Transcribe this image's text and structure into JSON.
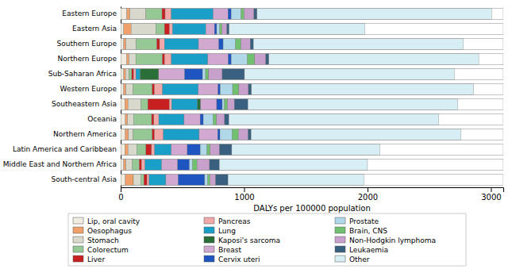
{
  "chart_data": {
    "type": "bar",
    "orientation": "horizontal",
    "stacked": true,
    "legend": "bottom",
    "grid": false,
    "xlabel": "DALYs per 100000 population",
    "xlim": [
      0,
      3100
    ],
    "xticks": [
      0,
      1000,
      2000,
      3000
    ],
    "categories": [
      "Eastern Europe",
      "Eastern Asia",
      "Southern Europe",
      "Northern Europe",
      "Sub-Saharan Africa",
      "Western Europe",
      "Southeastern Asia",
      "Oceania",
      "Northern America",
      "Latin America and Caribbean",
      "Middle East and Northern Africa",
      "South-central Asia"
    ],
    "series": [
      {
        "name": "Lip, oral cavity",
        "color": "#f0ede0",
        "values": [
          50,
          25,
          25,
          50,
          25,
          25,
          35,
          38,
          38,
          35,
          25,
          38
        ]
      },
      {
        "name": "Oesophagus",
        "color": "#f0a06a",
        "values": [
          25,
          60,
          18,
          18,
          15,
          18,
          25,
          18,
          25,
          25,
          18,
          65
        ]
      },
      {
        "name": "Stomach",
        "color": "#d8d8cc",
        "values": [
          130,
          200,
          80,
          55,
          25,
          58,
          105,
          50,
          38,
          70,
          50,
          60
        ]
      },
      {
        "name": "Colorectum",
        "color": "#96c896",
        "values": [
          130,
          70,
          170,
          215,
          25,
          155,
          55,
          145,
          155,
          75,
          58,
          25
        ]
      },
      {
        "name": "Liver",
        "color": "#c82020",
        "values": [
          25,
          40,
          22,
          18,
          15,
          18,
          175,
          18,
          18,
          45,
          18,
          25
        ]
      },
      {
        "name": "Pancreas",
        "color": "#f0a8a8",
        "values": [
          50,
          25,
          40,
          55,
          18,
          65,
          18,
          40,
          72,
          25,
          28,
          18
        ]
      },
      {
        "name": "Lung",
        "color": "#1aa0c8",
        "values": [
          340,
          270,
          275,
          295,
          35,
          290,
          210,
          205,
          290,
          135,
          135,
          135
        ]
      },
      {
        "name": "Kaposi's sarcoma",
        "color": "#2a6e38",
        "values": [
          0,
          0,
          0,
          0,
          150,
          0,
          25,
          0,
          0,
          0,
          0,
          0
        ]
      },
      {
        "name": "Breast",
        "color": "#d0a8d0",
        "values": [
          120,
          70,
          165,
          165,
          210,
          160,
          130,
          130,
          150,
          130,
          130,
          100
        ]
      },
      {
        "name": "Cervix uteri",
        "color": "#1e55c0",
        "values": [
          25,
          18,
          35,
          25,
          145,
          18,
          45,
          25,
          18,
          105,
          95,
          215
        ]
      },
      {
        "name": "Prostate",
        "color": "#b0d8e8",
        "values": [
          80,
          25,
          100,
          130,
          25,
          100,
          18,
          80,
          100,
          55,
          25,
          25
        ]
      },
      {
        "name": "Brain, CNS",
        "color": "#70c070",
        "values": [
          25,
          18,
          45,
          60,
          25,
          50,
          25,
          28,
          50,
          25,
          38,
          18
        ]
      },
      {
        "name": "Non-Hodgkin lymphoma",
        "color": "#c8a0cc",
        "values": [
          80,
          40,
          75,
          90,
          110,
          78,
          55,
          65,
          78,
          75,
          100,
          45
        ]
      },
      {
        "name": "Leukaemia",
        "color": "#3a6080",
        "values": [
          25,
          18,
          25,
          25,
          180,
          25,
          110,
          35,
          25,
          100,
          80,
          100
        ]
      },
      {
        "name": "Other",
        "color": "#d8eef5",
        "values": [
          1900,
          1100,
          1700,
          1700,
          1700,
          1800,
          1700,
          1700,
          1700,
          1200,
          1200,
          1100
        ]
      }
    ]
  }
}
